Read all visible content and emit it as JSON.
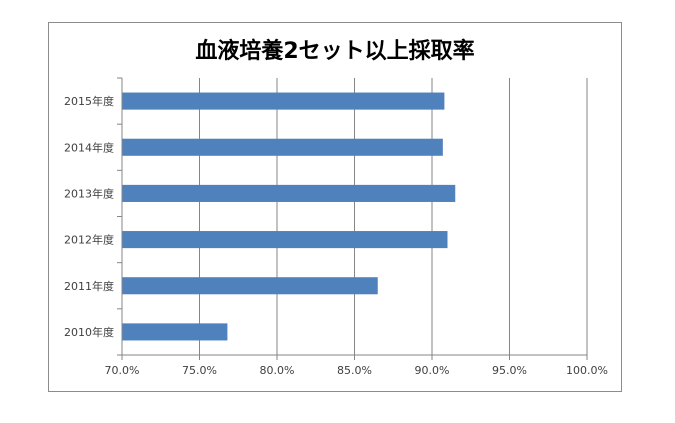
{
  "chart_data": {
    "type": "bar",
    "orientation": "horizontal",
    "title": "血液培養2セット以上採取率",
    "categories": [
      "2010年度",
      "2011年度",
      "2012年度",
      "2013年度",
      "2014年度",
      "2015年度"
    ],
    "values": [
      0.768,
      0.865,
      0.91,
      0.915,
      0.907,
      0.908
    ],
    "xlim": [
      0.7,
      1.0
    ],
    "xticks": [
      0.7,
      0.75,
      0.8,
      0.85,
      0.9,
      0.95,
      1.0
    ],
    "xtick_labels": [
      "70.0%",
      "75.0%",
      "80.0%",
      "85.0%",
      "90.0%",
      "95.0%",
      "100.0%"
    ],
    "xlabel": "",
    "ylabel": "",
    "grid": "vertical",
    "legend": "none",
    "bar_color": "#4f81bd",
    "grid_color": "#868686"
  }
}
